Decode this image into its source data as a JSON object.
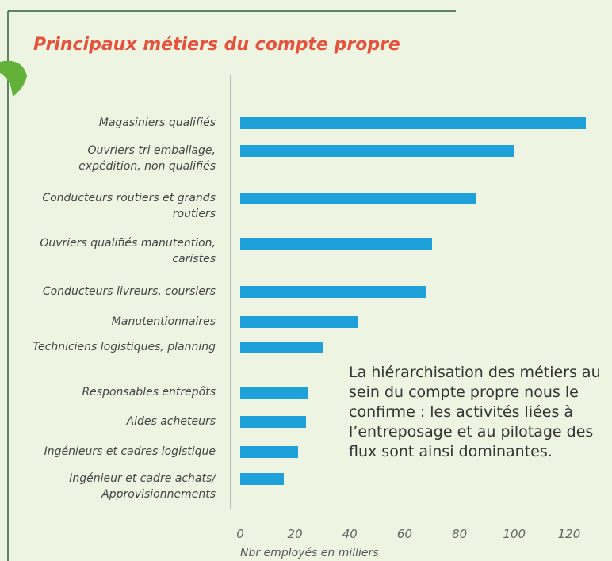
{
  "chart_data": {
    "type": "barh",
    "title": "Principaux métiers du compte propre",
    "categories": [
      "Magasiniers qualifiés",
      "Ouvriers tri emballage, expédition, non qualifiés",
      "Conducteurs routiers et grands routiers",
      "Ouvriers qualifiés manutention, caristes",
      "Conducteurs livreurs, coursiers",
      "Manutentionnaires",
      "Techniciens logistiques, planning",
      "Responsables entrepôts",
      "Aides acheteurs",
      "Ingénieurs et cadres logistique",
      "Ingénieur et cadre achats/ Approvisionnements"
    ],
    "values": [
      126,
      100,
      86,
      70,
      68,
      43,
      30,
      25,
      24,
      21,
      16
    ],
    "color": "#1ea0d8",
    "xlim": [
      0,
      130
    ],
    "xticks": [
      0,
      20,
      40,
      60,
      80,
      100,
      120
    ],
    "xlabel": "Nbr employés en milliers",
    "annotation": "La hiérarchisation des métiers au sein du compte propre nous le confirme : les activités liées à l’entreposage et au pilotage des flux sont ainsi dominantes."
  }
}
